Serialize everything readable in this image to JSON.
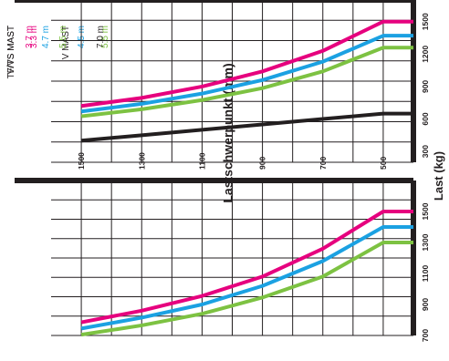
{
  "colors": {
    "magenta": "#e6007e",
    "blue": "#1ba1e2",
    "green": "#7dc242",
    "black": "#231f20",
    "grid": "#231f20"
  },
  "chart_data": [
    {
      "type": "line",
      "xlabel": "Lastschwerpunkt (mm)",
      "ylabel": "Last (kg)",
      "xlim": [
        400,
        1600
      ],
      "ylim": [
        700,
        1700
      ],
      "x_ticks": [
        500,
        700,
        900,
        1100,
        1300,
        1500
      ],
      "y_ticks": [
        1500,
        1300,
        1100,
        900,
        700
      ],
      "group_label": "V/VS MAST",
      "group_label2": "V MAST",
      "series": [
        {
          "name": "3.3 m",
          "color": "#e6007e",
          "x": [
            400,
            500,
            700,
            900,
            1100,
            1300,
            1500
          ],
          "y": [
            1500,
            1500,
            1260,
            1080,
            955,
            860,
            785
          ]
        },
        {
          "name": "4.5 m",
          "color": "#1ba1e2",
          "x": [
            400,
            500,
            700,
            900,
            1100,
            1300,
            1500
          ],
          "y": [
            1400,
            1400,
            1180,
            1020,
            900,
            815,
            745
          ]
        },
        {
          "name": "5.5 m",
          "color": "#7dc242",
          "x": [
            400,
            500,
            700,
            900,
            1100,
            1300,
            1500
          ],
          "y": [
            1300,
            1300,
            1080,
            945,
            840,
            765,
            705
          ]
        }
      ]
    },
    {
      "type": "line",
      "xlabel": "",
      "ylabel": "",
      "xlim": [
        400,
        1600
      ],
      "ylim": [
        200,
        1700
      ],
      "x_ticks": [
        500,
        700,
        900,
        1100,
        1300,
        1500
      ],
      "y_ticks": [
        1500,
        1200,
        900,
        600,
        300
      ],
      "group_label": "TF/TS MAST",
      "series": [
        {
          "name": "3.7 m",
          "color": "#e6007e",
          "x": [
            400,
            500,
            700,
            900,
            1100,
            1300,
            1500
          ],
          "y": [
            1500,
            1500,
            1230,
            1040,
            900,
            795,
            720
          ]
        },
        {
          "name": "4.7 m",
          "color": "#1ba1e2",
          "x": [
            400,
            500,
            700,
            900,
            1100,
            1300,
            1500
          ],
          "y": [
            1370,
            1370,
            1130,
            960,
            835,
            740,
            670
          ]
        },
        {
          "name": "5.5 m",
          "color": "#7dc242",
          "x": [
            400,
            500,
            700,
            900,
            1100,
            1300,
            1500
          ],
          "y": [
            1260,
            1260,
            1040,
            885,
            775,
            690,
            625
          ]
        },
        {
          "name": "7.0 m",
          "color": "#231f20",
          "x": [
            400,
            500,
            700,
            900,
            1100,
            1300,
            1500
          ],
          "y": [
            650,
            650,
            600,
            550,
            500,
            450,
            400
          ]
        }
      ]
    }
  ]
}
